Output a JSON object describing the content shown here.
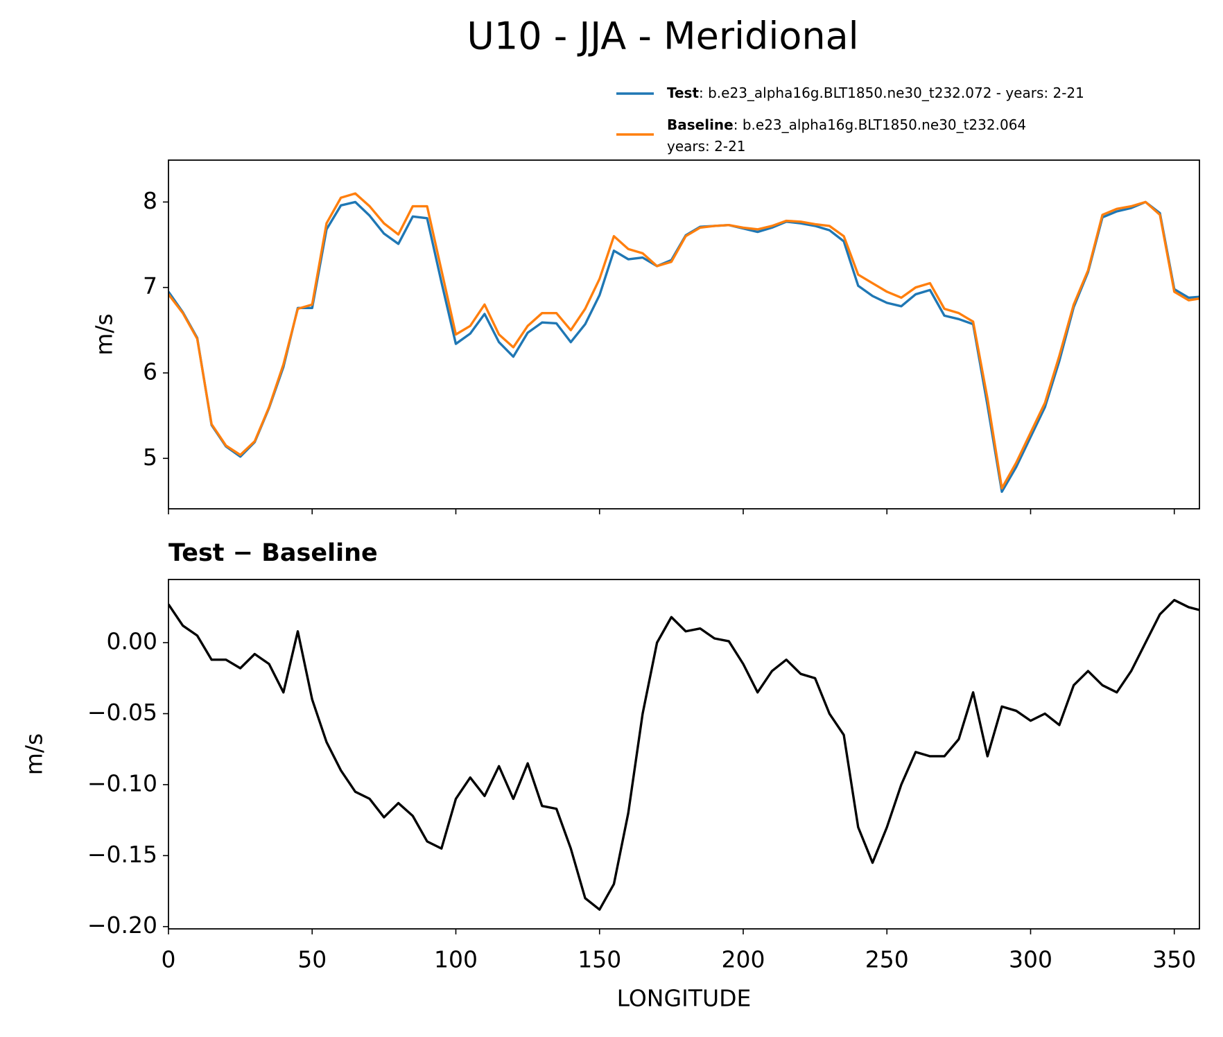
{
  "chart_data": [
    {
      "type": "line",
      "title": "U10 - JJA - Meridional",
      "ylabel": "m/s",
      "x": [
        0,
        5,
        10,
        15,
        20,
        25,
        30,
        35,
        40,
        45,
        50,
        55,
        60,
        65,
        70,
        75,
        80,
        85,
        90,
        95,
        100,
        105,
        110,
        115,
        120,
        125,
        130,
        135,
        140,
        145,
        150,
        155,
        160,
        165,
        170,
        175,
        180,
        185,
        190,
        195,
        200,
        205,
        210,
        215,
        220,
        225,
        230,
        235,
        240,
        245,
        250,
        255,
        260,
        265,
        270,
        275,
        280,
        285,
        290,
        295,
        300,
        305,
        310,
        315,
        320,
        325,
        330,
        335,
        340,
        345,
        350,
        355,
        358.75
      ],
      "series": [
        {
          "name": "Test",
          "description": [
            ": b.e23_alpha16g.BLT1850.ne30_t232.072 - years: 2-21"
          ],
          "color": "#1f77b4",
          "values": [
            6.95,
            6.71,
            6.41,
            5.39,
            5.14,
            5.02,
            5.19,
            5.59,
            6.07,
            6.76,
            6.76,
            7.68,
            7.96,
            8.0,
            7.84,
            7.63,
            7.51,
            7.83,
            7.81,
            7.06,
            6.34,
            6.46,
            6.69,
            6.36,
            6.19,
            6.47,
            6.59,
            6.58,
            6.36,
            6.57,
            6.91,
            7.43,
            7.33,
            7.35,
            7.25,
            7.32,
            7.61,
            7.71,
            7.72,
            7.73,
            7.69,
            7.65,
            7.7,
            7.77,
            7.75,
            7.72,
            7.67,
            7.54,
            7.02,
            6.9,
            6.82,
            6.78,
            6.92,
            6.97,
            6.67,
            6.63,
            6.57,
            5.62,
            4.61,
            4.9,
            5.25,
            5.6,
            6.14,
            6.77,
            7.18,
            7.82,
            7.89,
            7.93,
            8.0,
            7.87,
            6.98,
            6.88,
            6.89
          ]
        },
        {
          "name": "Baseline",
          "description": [
            ": b.e23_alpha16g.BLT1850.ne30_t232.064",
            "years: 2-21"
          ],
          "color": "#ff7f0e",
          "values": [
            6.92,
            6.7,
            6.4,
            5.4,
            5.15,
            5.04,
            5.2,
            5.6,
            6.1,
            6.75,
            6.8,
            7.75,
            8.05,
            8.1,
            7.95,
            7.75,
            7.62,
            7.95,
            7.95,
            7.2,
            6.45,
            6.55,
            6.8,
            6.45,
            6.3,
            6.55,
            6.7,
            6.7,
            6.5,
            6.75,
            7.1,
            7.6,
            7.45,
            7.4,
            7.25,
            7.3,
            7.6,
            7.7,
            7.72,
            7.73,
            7.7,
            7.68,
            7.72,
            7.78,
            7.77,
            7.74,
            7.72,
            7.6,
            7.15,
            7.05,
            6.95,
            6.88,
            7.0,
            7.05,
            6.75,
            6.7,
            6.6,
            5.7,
            4.65,
            4.95,
            5.3,
            5.65,
            6.2,
            6.8,
            7.2,
            7.85,
            7.92,
            7.95,
            8.0,
            7.85,
            6.95,
            6.85,
            6.87
          ]
        }
      ],
      "xlim": [
        0,
        358.75
      ],
      "xticks": [
        0,
        50,
        100,
        150,
        200,
        250,
        300,
        350
      ],
      "show_xtick_labels": false,
      "ylim": [
        4.41,
        8.49
      ],
      "yticks": [
        5,
        6,
        7,
        8
      ],
      "legend": "upper right"
    },
    {
      "type": "line",
      "title": "Test − Baseline",
      "ylabel": "m/s",
      "xlabel": "LONGITUDE",
      "x": [
        0,
        5,
        10,
        15,
        20,
        25,
        30,
        35,
        40,
        45,
        50,
        55,
        60,
        65,
        70,
        75,
        80,
        85,
        90,
        95,
        100,
        105,
        110,
        115,
        120,
        125,
        130,
        135,
        140,
        145,
        150,
        155,
        160,
        165,
        170,
        175,
        180,
        185,
        190,
        195,
        200,
        205,
        210,
        215,
        220,
        225,
        230,
        235,
        240,
        245,
        250,
        255,
        260,
        265,
        270,
        275,
        280,
        285,
        290,
        295,
        300,
        305,
        310,
        315,
        320,
        325,
        330,
        335,
        340,
        345,
        350,
        355,
        358.75
      ],
      "values": [
        0.027,
        0.012,
        0.005,
        -0.012,
        -0.012,
        -0.018,
        -0.008,
        -0.015,
        -0.035,
        0.008,
        -0.04,
        -0.07,
        -0.09,
        -0.105,
        -0.11,
        -0.123,
        -0.113,
        -0.122,
        -0.14,
        -0.145,
        -0.11,
        -0.095,
        -0.108,
        -0.087,
        -0.11,
        -0.085,
        -0.115,
        -0.117,
        -0.145,
        -0.18,
        -0.188,
        -0.17,
        -0.12,
        -0.05,
        0.0,
        0.018,
        0.008,
        0.01,
        0.003,
        0.001,
        -0.015,
        -0.035,
        -0.02,
        -0.012,
        -0.022,
        -0.025,
        -0.05,
        -0.065,
        -0.13,
        -0.155,
        -0.13,
        -0.1,
        -0.077,
        -0.08,
        -0.08,
        -0.068,
        -0.035,
        -0.08,
        -0.045,
        -0.048,
        -0.055,
        -0.05,
        -0.058,
        -0.03,
        -0.02,
        -0.03,
        -0.035,
        -0.02,
        0.0,
        0.02,
        0.03,
        0.025,
        0.023
      ],
      "color": "#000000",
      "xlim": [
        0,
        358.75
      ],
      "xticks": [
        0,
        50,
        100,
        150,
        200,
        250,
        300,
        350
      ],
      "show_xtick_labels": true,
      "ylim": [
        -0.2016,
        0.0445
      ],
      "yticks": [
        {
          "value": -0.2,
          "label": "−0.20"
        },
        {
          "value": -0.15,
          "label": "−0.15"
        },
        {
          "value": -0.1,
          "label": "−0.10"
        },
        {
          "value": -0.05,
          "label": "−0.05"
        },
        {
          "value": 0,
          "label": "0.00"
        }
      ]
    }
  ]
}
